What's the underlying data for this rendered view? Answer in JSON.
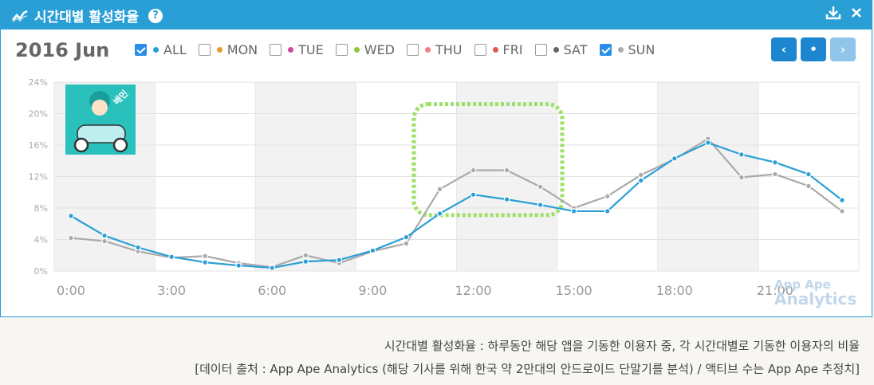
{
  "header": {
    "title": "시간대별 활성화율",
    "help_label": "?"
  },
  "toolbar": {
    "period": "2016 Jun",
    "filters": [
      {
        "label": "ALL",
        "checked": true,
        "color": "#2a9fd6"
      },
      {
        "label": "MON",
        "checked": false,
        "color": "#e89a2a"
      },
      {
        "label": "TUE",
        "checked": false,
        "color": "#c94b9c"
      },
      {
        "label": "WED",
        "checked": false,
        "color": "#8cc63f"
      },
      {
        "label": "THU",
        "checked": false,
        "color": "#f08080"
      },
      {
        "label": "FRI",
        "checked": false,
        "color": "#e05a4a"
      },
      {
        "label": "SAT",
        "checked": false,
        "color": "#666666"
      },
      {
        "label": "SUN",
        "checked": true,
        "color": "#aaaaaa"
      }
    ],
    "nav": {
      "prev": "‹",
      "current": "•",
      "next": "›"
    }
  },
  "app_icon": {
    "badge_text": "배민"
  },
  "watermark": {
    "line1": "App Ape",
    "line2": "Analytics"
  },
  "chart_data": {
    "type": "line",
    "x": [
      "0:00",
      "1:00",
      "2:00",
      "3:00",
      "4:00",
      "5:00",
      "6:00",
      "7:00",
      "8:00",
      "9:00",
      "10:00",
      "11:00",
      "12:00",
      "13:00",
      "14:00",
      "15:00",
      "16:00",
      "17:00",
      "18:00",
      "19:00",
      "20:00",
      "21:00",
      "22:00",
      "23:00"
    ],
    "x_ticks": [
      "0:00",
      "3:00",
      "6:00",
      "9:00",
      "12:00",
      "15:00",
      "18:00",
      "21:00"
    ],
    "y_ticks": [
      "0%",
      "4%",
      "8%",
      "12%",
      "16%",
      "20%",
      "24%"
    ],
    "ylim": [
      0,
      24
    ],
    "series": [
      {
        "name": "ALL",
        "color": "#2a9fd6",
        "values": [
          7.0,
          4.5,
          3.0,
          1.8,
          1.1,
          0.7,
          0.4,
          1.2,
          1.4,
          2.6,
          4.3,
          7.3,
          9.7,
          9.1,
          8.4,
          7.6,
          7.6,
          11.5,
          14.3,
          16.3,
          14.8,
          13.8,
          12.3,
          9.0
        ]
      },
      {
        "name": "SUN",
        "color": "#aaaaaa",
        "values": [
          4.2,
          3.8,
          2.5,
          1.7,
          1.9,
          1.0,
          0.5,
          2.0,
          1.0,
          2.5,
          3.5,
          10.4,
          12.8,
          12.8,
          10.7,
          8.0,
          9.5,
          12.2,
          14.2,
          16.8,
          11.9,
          12.3,
          10.8,
          7.6
        ]
      }
    ]
  },
  "caption": {
    "line1": "시간대별 활성화율 : 하루동안 해당 앱을 기동한 이용자 중, 각 시간대별로 기동한 이용자의 비율",
    "line2": "[데이터 출처 : App Ape Analytics (해당 기사를 위해 한국 약 2만대의 안드로이드 단말기를 분석) / 액티브 수는 App Ape 추정치]"
  }
}
